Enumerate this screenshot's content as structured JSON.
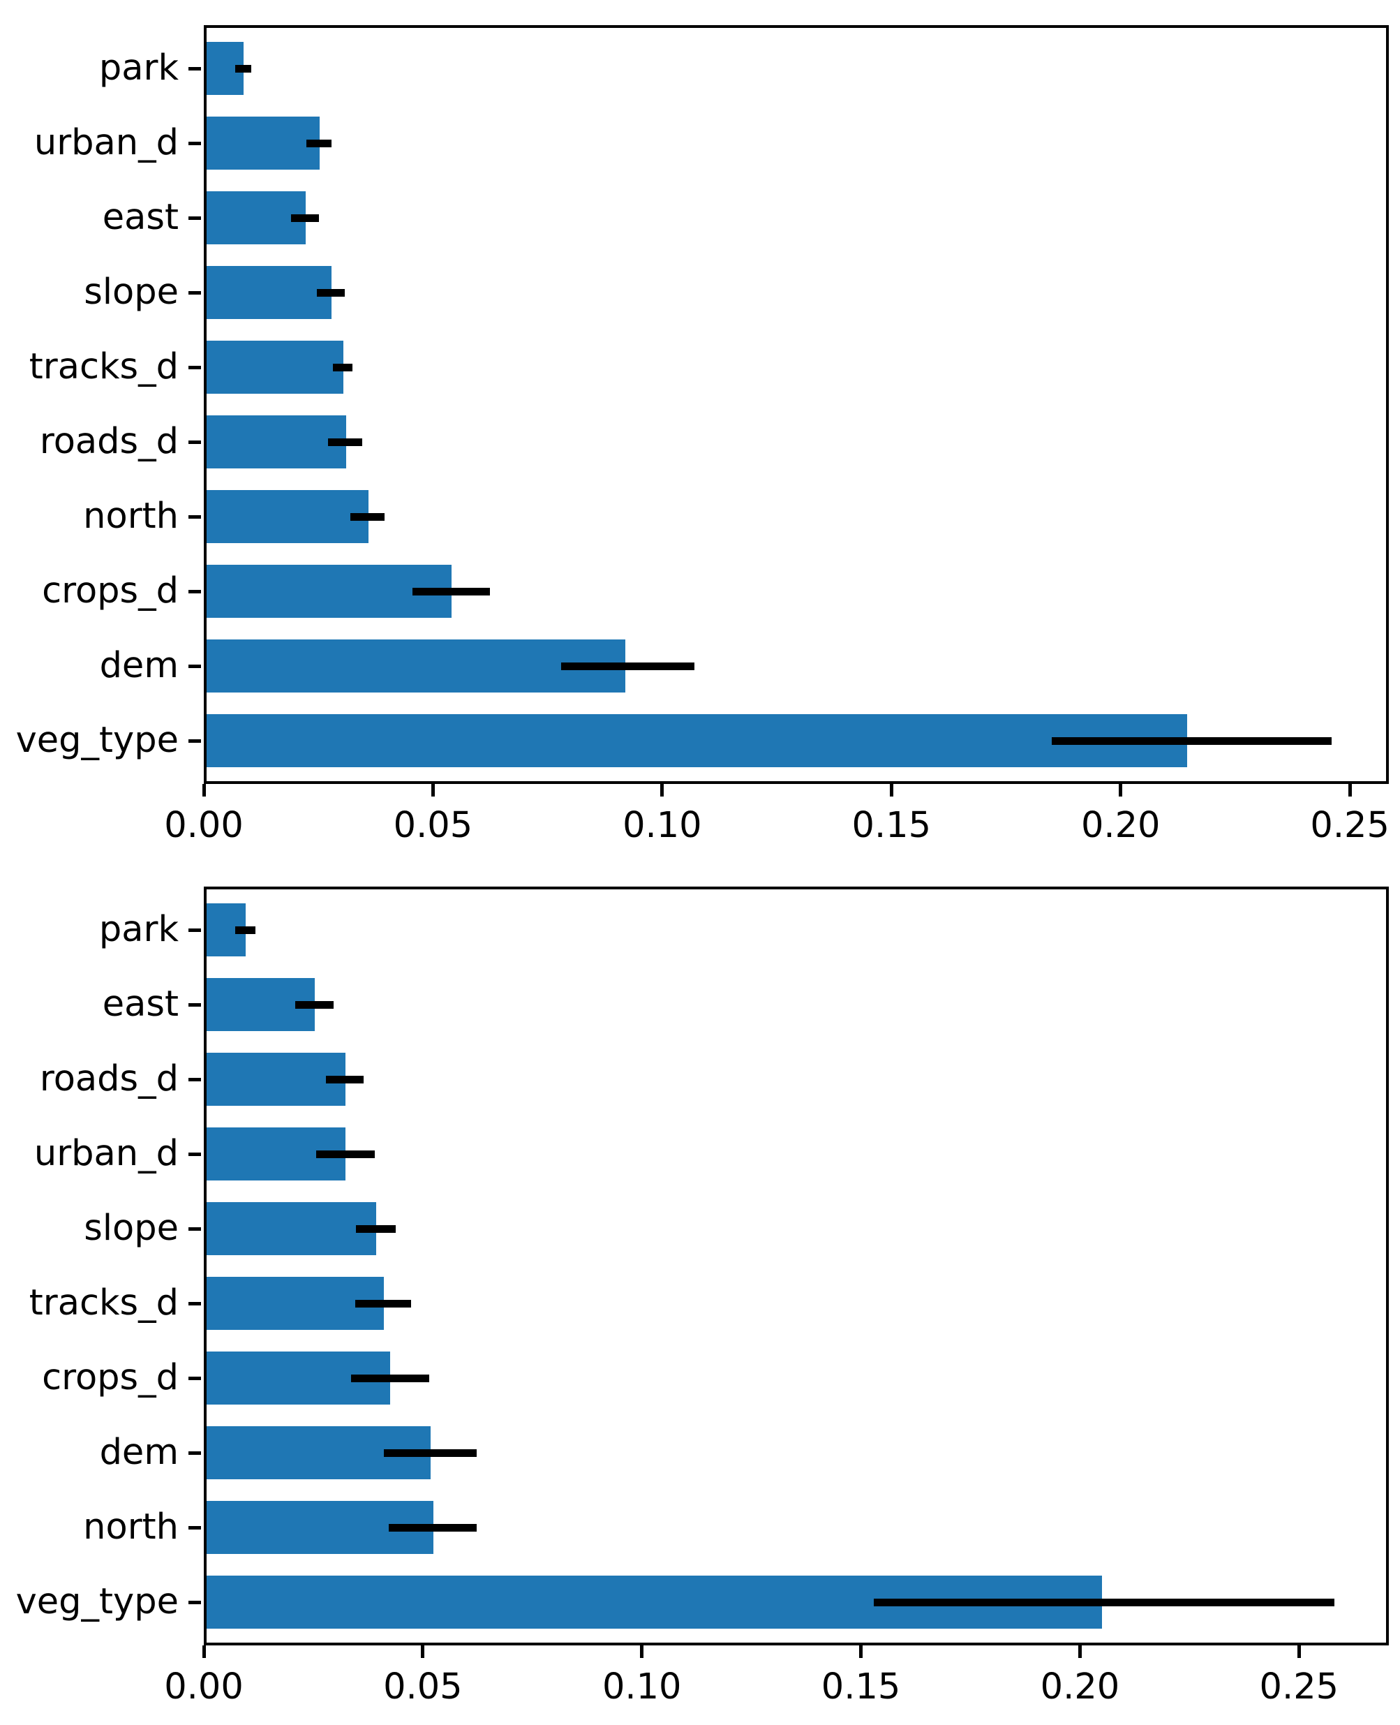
{
  "figure": {
    "background_color": "#ffffff",
    "bar_color": "#1f77b4",
    "error_bar_color": "#000000",
    "axis_color": "#000000"
  },
  "chart_data": [
    {
      "type": "bar",
      "orientation": "horizontal",
      "title": "",
      "xlabel": "",
      "ylabel": "",
      "grid": false,
      "legend": null,
      "categories": [
        "park",
        "urban_d",
        "east",
        "slope",
        "tracks_d",
        "roads_d",
        "north",
        "crops_d",
        "dem",
        "veg_type"
      ],
      "values": [
        0.0087,
        0.0253,
        0.0222,
        0.0278,
        0.0304,
        0.031,
        0.0359,
        0.054,
        0.092,
        0.2145
      ],
      "error_low": [
        0.0068,
        0.0224,
        0.0191,
        0.0247,
        0.0282,
        0.0271,
        0.0319,
        0.0455,
        0.0779,
        0.185
      ],
      "error_high": [
        0.0103,
        0.0279,
        0.0251,
        0.0307,
        0.0324,
        0.0345,
        0.0394,
        0.0624,
        0.107,
        0.246
      ],
      "xlim": [
        0,
        0.2585
      ],
      "xticks": [
        0,
        0.05,
        0.1,
        0.15,
        0.2,
        0.25
      ],
      "xticklabels": [
        "0.00",
        "0.05",
        "0.10",
        "0.15",
        "0.20",
        "0.25"
      ],
      "bar_color": "#1f77b4",
      "error_color": "#000000"
    },
    {
      "type": "bar",
      "orientation": "horizontal",
      "title": "",
      "xlabel": "",
      "ylabel": "",
      "grid": false,
      "legend": null,
      "categories": [
        "park",
        "east",
        "roads_d",
        "urban_d",
        "slope",
        "tracks_d",
        "crops_d",
        "dem",
        "north",
        "veg_type"
      ],
      "values": [
        0.0096,
        0.0253,
        0.0323,
        0.0323,
        0.0393,
        0.0411,
        0.0425,
        0.0517,
        0.0524,
        0.205
      ],
      "error_low": [
        0.0072,
        0.0209,
        0.0279,
        0.0256,
        0.0347,
        0.0346,
        0.0336,
        0.0411,
        0.0422,
        0.153
      ],
      "error_high": [
        0.0118,
        0.0296,
        0.0365,
        0.039,
        0.0438,
        0.0473,
        0.0514,
        0.0623,
        0.0623,
        0.258
      ],
      "xlim": [
        0,
        0.2705
      ],
      "xticks": [
        0,
        0.05,
        0.1,
        0.15,
        0.2,
        0.25
      ],
      "xticklabels": [
        "0.00",
        "0.05",
        "0.10",
        "0.15",
        "0.20",
        "0.25"
      ],
      "bar_color": "#1f77b4",
      "error_color": "#000000"
    }
  ]
}
